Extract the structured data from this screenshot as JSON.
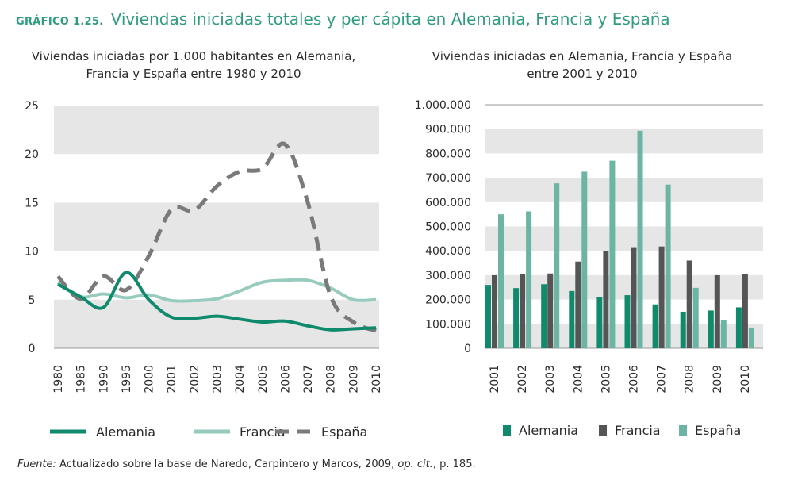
{
  "figure": {
    "label": "GRÁFICO 1.25.",
    "title": "Viviendas iniciadas totales y per cápita en Alemania, Francia y España"
  },
  "colors": {
    "alemania": "#0f8a6c",
    "francia": "#96cbbd",
    "espana": "#7a7a7a",
    "francia_bar": "#555555",
    "espana_bar": "#6cb5a4",
    "band": "#e6e6e6"
  },
  "source": {
    "label": "Fuente:",
    "text_1": " Actualizado sobre la base de Naredo, Carpintero y Marcos, 2009, ",
    "op_cit": "op. cit.",
    "text_2": ", p. 185."
  },
  "chart_data": [
    {
      "type": "line",
      "title_line1": "Viviendas iniciadas por 1.000 habitantes en Alemania,",
      "title_line2": "Francia y España entre 1980 y 2010",
      "x": [
        "1980",
        "1985",
        "1990",
        "1995",
        "2000",
        "2001",
        "2002",
        "2003",
        "2004",
        "2005",
        "2006",
        "2007",
        "2008",
        "2009",
        "2010"
      ],
      "y_ticks": [
        "0",
        "5",
        "10",
        "15",
        "20",
        "25"
      ],
      "ylim": [
        0,
        25
      ],
      "series": [
        {
          "name": "Alemania",
          "style": "solid",
          "values": [
            6.6,
            5.3,
            4.2,
            7.8,
            5.0,
            3.2,
            3.1,
            3.3,
            3.0,
            2.7,
            2.8,
            2.3,
            1.9,
            2.0,
            2.1
          ]
        },
        {
          "name": "Francia",
          "style": "solid",
          "values": [
            6.8,
            5.3,
            5.6,
            5.2,
            5.5,
            4.9,
            4.9,
            5.1,
            5.9,
            6.8,
            7.0,
            7.0,
            6.2,
            5.0,
            5.0
          ]
        },
        {
          "name": "España",
          "style": "dashed",
          "values": [
            7.4,
            5.1,
            7.4,
            6.0,
            9.5,
            14.3,
            14.2,
            16.7,
            18.2,
            18.5,
            21.0,
            15.0,
            5.4,
            2.7,
            1.8
          ]
        }
      ]
    },
    {
      "type": "bar",
      "title_line1": "Viviendas iniciadas en Alemania, Francia y España",
      "title_line2": "entre 2001 y 2010",
      "categories": [
        "2001",
        "2002",
        "2003",
        "2004",
        "2005",
        "2006",
        "2007",
        "2008",
        "2009",
        "2010"
      ],
      "y_ticks": [
        "0",
        "100.000",
        "200.000",
        "300.000",
        "400.000",
        "500.000",
        "600.000",
        "700.000",
        "800.000",
        "900.000",
        "1.000.000"
      ],
      "ylim": [
        0,
        1000000
      ],
      "series": [
        {
          "name": "Alemania",
          "values": [
            260000,
            247000,
            263000,
            235000,
            210000,
            218000,
            180000,
            150000,
            155000,
            168000
          ]
        },
        {
          "name": "Francia",
          "values": [
            300000,
            305000,
            307000,
            356000,
            400000,
            415000,
            418000,
            360000,
            300000,
            306000
          ]
        },
        {
          "name": "España",
          "values": [
            550000,
            562000,
            677000,
            725000,
            770000,
            893000,
            672000,
            248000,
            115000,
            85000
          ]
        }
      ]
    }
  ]
}
